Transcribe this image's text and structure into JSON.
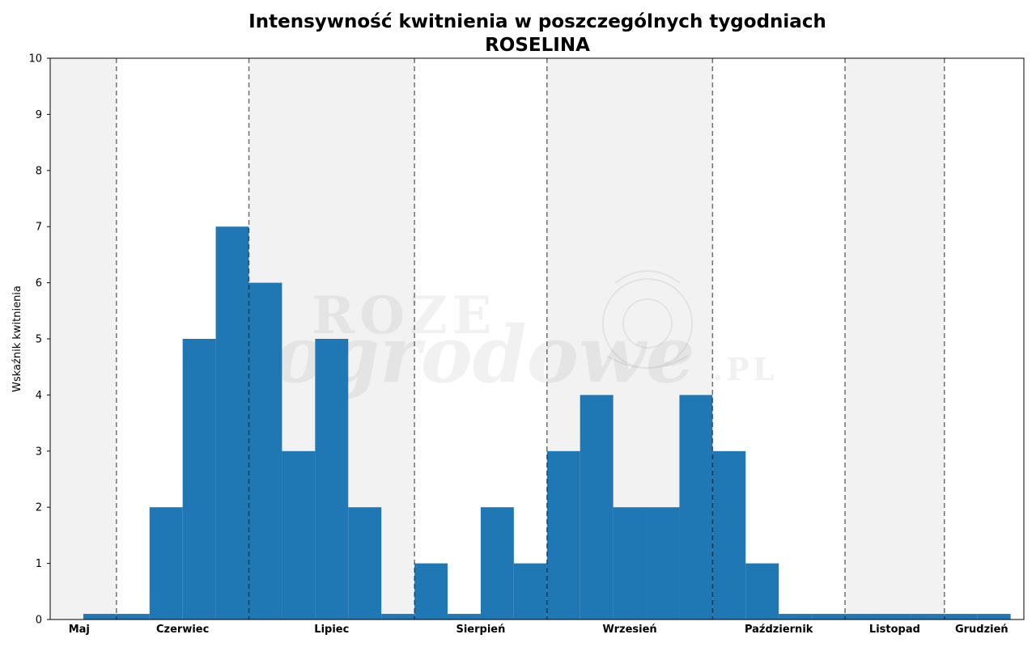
{
  "chart_data": {
    "type": "bar",
    "title": "Intensywność kwitnienia w poszczególnych tygodniach",
    "subtitle": "ROSELINA",
    "xlabel": "",
    "ylabel": "Wskaźnik kwitnienia",
    "ylim": [
      0,
      10
    ],
    "yticks": [
      "0",
      "1",
      "2",
      "3",
      "4",
      "5",
      "6",
      "7",
      "8",
      "9",
      "10"
    ],
    "grid": false,
    "legend": "none",
    "bar_color": "#1f77b4",
    "shade_color": "#f2f2f2",
    "watermark": {
      "line1": "ROZE",
      "line2": "ogrodowe",
      "line3": ".PL"
    },
    "weeks": 29,
    "values": [
      0,
      0.1,
      0.1,
      2,
      5,
      7,
      6,
      3,
      5,
      2,
      0.1,
      1,
      0.1,
      2,
      1,
      3,
      4,
      2,
      2,
      4,
      3,
      1,
      0.1,
      0.1,
      0.1,
      0.1,
      0.1,
      0.1,
      0.1
    ],
    "months": [
      {
        "label": "Maj",
        "start_week": 0,
        "end_week": 2.25,
        "shaded": true
      },
      {
        "label": "Czerwiec",
        "start_week": 2.25,
        "end_week": 6.25,
        "shaded": false
      },
      {
        "label": "Lipiec",
        "start_week": 6.25,
        "end_week": 11.25,
        "shaded": true
      },
      {
        "label": "Sierpień",
        "start_week": 11.25,
        "end_week": 15.25,
        "shaded": false
      },
      {
        "label": "Wrzesień",
        "start_week": 15.25,
        "end_week": 20.25,
        "shaded": true
      },
      {
        "label": "Październik",
        "start_week": 20.25,
        "end_week": 24.25,
        "shaded": false
      },
      {
        "label": "Listopad",
        "start_week": 24.25,
        "end_week": 27.25,
        "shaded": true
      },
      {
        "label": "Grudzień",
        "start_week": 27.25,
        "end_week": 29.5,
        "shaded": false
      }
    ]
  }
}
